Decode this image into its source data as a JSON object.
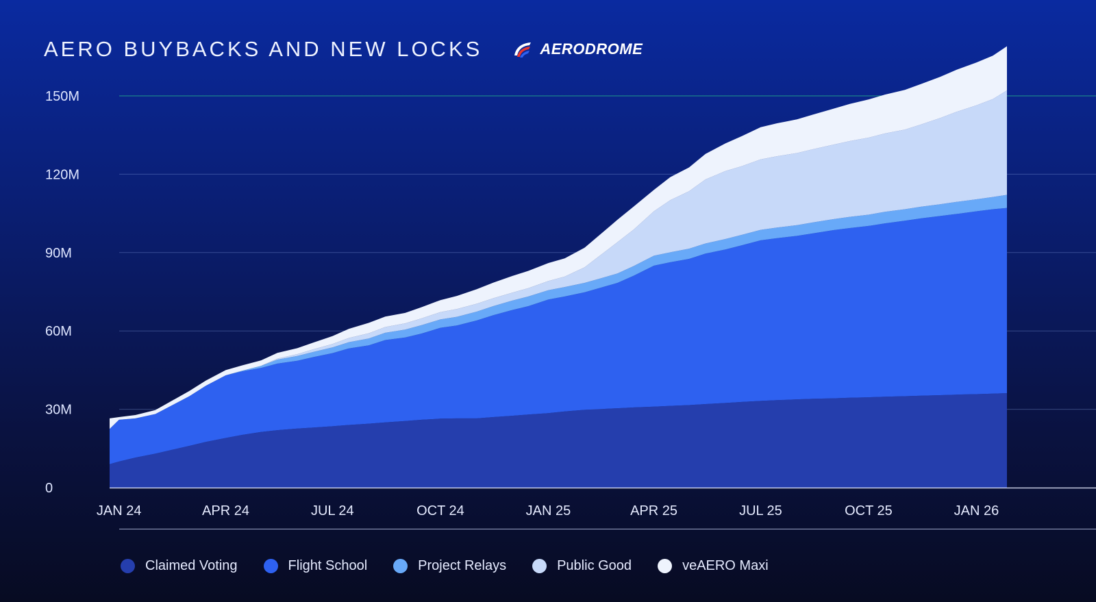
{
  "header": {
    "title": "AERO BUYBACKS AND NEW LOCKS",
    "brand": "AERODROME"
  },
  "chart_data": {
    "type": "area",
    "stacked": true,
    "title": "AERO BUYBACKS AND NEW LOCKS",
    "xlabel": "",
    "ylabel": "",
    "ylim": [
      0,
      160
    ],
    "yticks": [
      0,
      30,
      60,
      90,
      120,
      150
    ],
    "ytick_labels": [
      "0",
      "30M",
      "60M",
      "90M",
      "120M",
      "150M"
    ],
    "xlim": [
      "2023-12-24",
      "2026-01-27"
    ],
    "xtick_dates": [
      "2024-01-01",
      "2024-04-01",
      "2024-07-01",
      "2024-10-01",
      "2025-01-01",
      "2025-04-01",
      "2025-07-01",
      "2025-10-01",
      "2026-01-01"
    ],
    "xtick_labels": [
      "JAN 24",
      "APR 24",
      "JUL 24",
      "OCT 24",
      "JAN 25",
      "APR 25",
      "JUL 25",
      "OCT 25",
      "JAN 26"
    ],
    "grid": "horizontal",
    "highlight_line": 150,
    "legend_position": "bottom",
    "x": [
      "2023-12-24",
      "2024-01-01",
      "2024-01-15",
      "2024-02-01",
      "2024-03-01",
      "2024-03-15",
      "2024-04-01",
      "2024-04-15",
      "2024-05-01",
      "2024-05-15",
      "2024-06-01",
      "2024-06-15",
      "2024-07-01",
      "2024-07-15",
      "2024-08-01",
      "2024-08-15",
      "2024-09-01",
      "2024-09-15",
      "2024-10-01",
      "2024-10-15",
      "2024-11-01",
      "2024-11-15",
      "2024-12-01",
      "2024-12-15",
      "2025-01-01",
      "2025-01-15",
      "2025-02-01",
      "2025-02-15",
      "2025-03-01",
      "2025-03-15",
      "2025-04-01",
      "2025-04-15",
      "2025-05-01",
      "2025-05-15",
      "2025-06-01",
      "2025-06-15",
      "2025-07-01",
      "2025-07-15",
      "2025-08-01",
      "2025-08-15",
      "2025-09-01",
      "2025-09-15",
      "2025-10-01",
      "2025-10-15",
      "2025-11-01",
      "2025-11-15",
      "2025-12-01",
      "2025-12-15",
      "2026-01-01",
      "2026-01-15",
      "2026-01-27"
    ],
    "series": [
      {
        "name": "Claimed Voting",
        "color": "#253ead",
        "values": [
          9,
          10,
          11.5,
          13,
          16,
          17.5,
          19,
          20.2,
          21.3,
          22,
          22.6,
          23,
          23.5,
          24,
          24.5,
          25,
          25.5,
          26,
          26.4,
          26.5,
          26.5,
          27,
          27.5,
          28,
          28.5,
          29.2,
          29.8,
          30.1,
          30.4,
          30.7,
          31,
          31.3,
          31.6,
          32,
          32.4,
          32.8,
          33.2,
          33.5,
          33.8,
          34,
          34.2,
          34.4,
          34.6,
          34.8,
          35,
          35.2,
          35.4,
          35.6,
          35.8,
          36,
          36.2
        ]
      },
      {
        "name": "Flight School",
        "color": "#2e61f0",
        "values": [
          13.5,
          16,
          15,
          15.2,
          19,
          21.5,
          24,
          24.3,
          24.5,
          25.5,
          26,
          27,
          28,
          29.3,
          30,
          31.5,
          32,
          33,
          34.8,
          35.6,
          37.5,
          39,
          40.5,
          41.5,
          43.5,
          44,
          45,
          46.5,
          48,
          50.5,
          54,
          55,
          56,
          57.6,
          58.8,
          60,
          61.5,
          62,
          62.6,
          63.4,
          64.4,
          65,
          65.6,
          66.4,
          67.2,
          67.9,
          68.6,
          69.2,
          70,
          70.6,
          70.9
        ]
      },
      {
        "name": "Project Relays",
        "color": "#68a9f8",
        "values": [
          0,
          0,
          0,
          0,
          0,
          0,
          0,
          0.3,
          0.8,
          1.5,
          1.8,
          2,
          2.2,
          2.4,
          2.6,
          2.8,
          3,
          3.2,
          3.2,
          3.3,
          3.4,
          3.5,
          3.6,
          3.7,
          3.6,
          3.6,
          3.6,
          3.6,
          3.6,
          3.7,
          3.8,
          3.8,
          3.9,
          3.9,
          4,
          4,
          4,
          4.1,
          4.1,
          4.2,
          4.2,
          4.3,
          4.3,
          4.4,
          4.4,
          4.5,
          4.5,
          4.6,
          4.6,
          4.7,
          5
        ]
      },
      {
        "name": "Public Good",
        "color": "#c7d9f9",
        "values": [
          0,
          0,
          0,
          0,
          0,
          0,
          0,
          0,
          0,
          0.4,
          0.7,
          1,
          1.3,
          1.6,
          2,
          2.2,
          2.4,
          2.6,
          2.8,
          3,
          3,
          3,
          3,
          3.2,
          3.5,
          4,
          6,
          9,
          12,
          14,
          17,
          20,
          22,
          24.5,
          26,
          26.3,
          27,
          27.3,
          27.6,
          28,
          28.5,
          29,
          29.5,
          30,
          30.5,
          31.5,
          33,
          34.5,
          36,
          37.5,
          40
        ]
      },
      {
        "name": "veAERO Maxi",
        "color": "#eef3fd",
        "values": [
          4,
          1,
          1.3,
          1.5,
          2,
          2,
          2,
          2,
          2.1,
          2.2,
          2.3,
          2.6,
          3,
          3.5,
          4,
          4,
          4,
          4.3,
          4.6,
          5,
          5.6,
          6,
          6.4,
          6.6,
          6.9,
          7,
          7.5,
          8,
          8.6,
          8.8,
          8.2,
          8.8,
          9.1,
          9.8,
          10.6,
          11.5,
          12.3,
          12.6,
          12.9,
          13.3,
          13.8,
          14.2,
          14.6,
          14.9,
          15.2,
          15.5,
          15.8,
          16.1,
          16.4,
          16.6,
          16.9
        ]
      }
    ]
  }
}
